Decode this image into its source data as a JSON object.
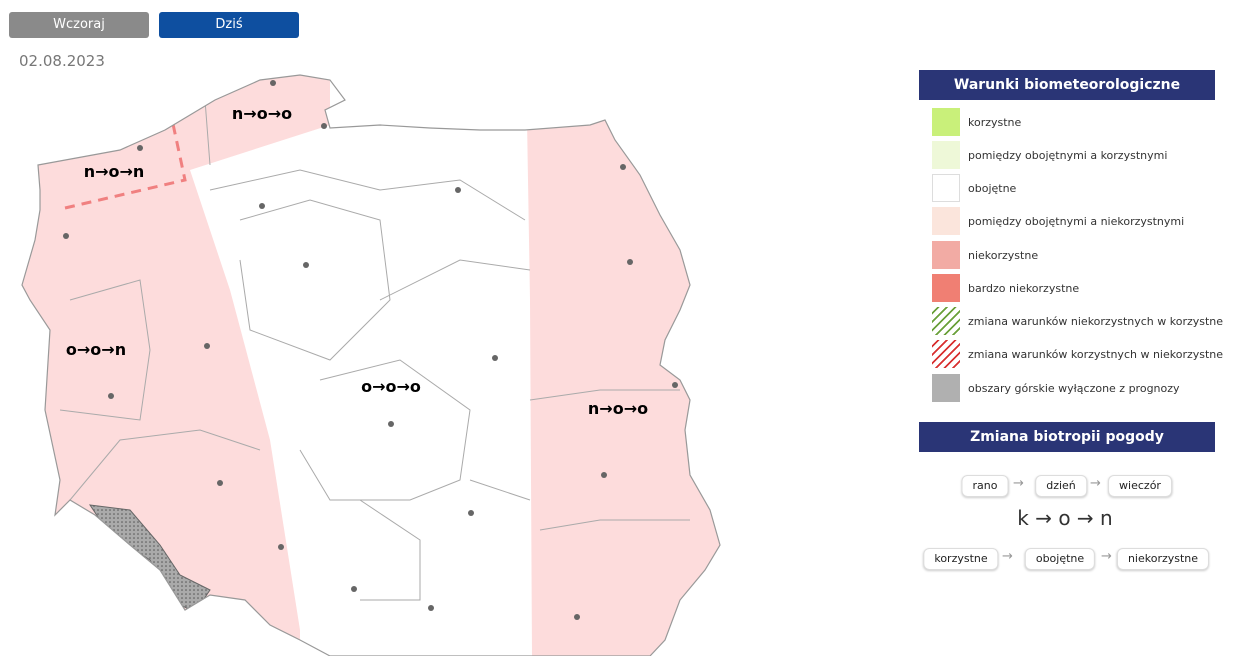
{
  "buttons": [
    "Wczoraj",
    "Dziś"
  ],
  "date": "02.08.2023",
  "map": {
    "regions": [
      {
        "label": "n→o→o"
      },
      {
        "label": "n→o→n"
      },
      {
        "label": "o→o→n"
      },
      {
        "label": "o→o→o"
      },
      {
        "label": "n→o→o"
      }
    ]
  },
  "legend": {
    "title": "Warunki biometeorologiczne",
    "items": [
      {
        "label": "korzystne"
      },
      {
        "label": "pomiędzy obojętnymi a korzystnymi"
      },
      {
        "label": "obojętne"
      },
      {
        "label": "pomiędzy obojętnymi a niekorzystnymi"
      },
      {
        "label": "niekorzystne"
      },
      {
        "label": "bardzo niekorzystne"
      },
      {
        "label": "zmiana warunków niekorzystnych w korzystne"
      },
      {
        "label": "zmiana warunków korzystnych w niekorzystne"
      },
      {
        "label": "obszary górskie wyłączone z prognozy"
      }
    ]
  },
  "biotropy": {
    "title": "Zmiana biotropii pogody",
    "times": [
      "rano",
      "dzień",
      "wieczór"
    ],
    "example": "k → o → n",
    "meanings": [
      "korzystne",
      "obojętne",
      "niekorzystne"
    ]
  }
}
